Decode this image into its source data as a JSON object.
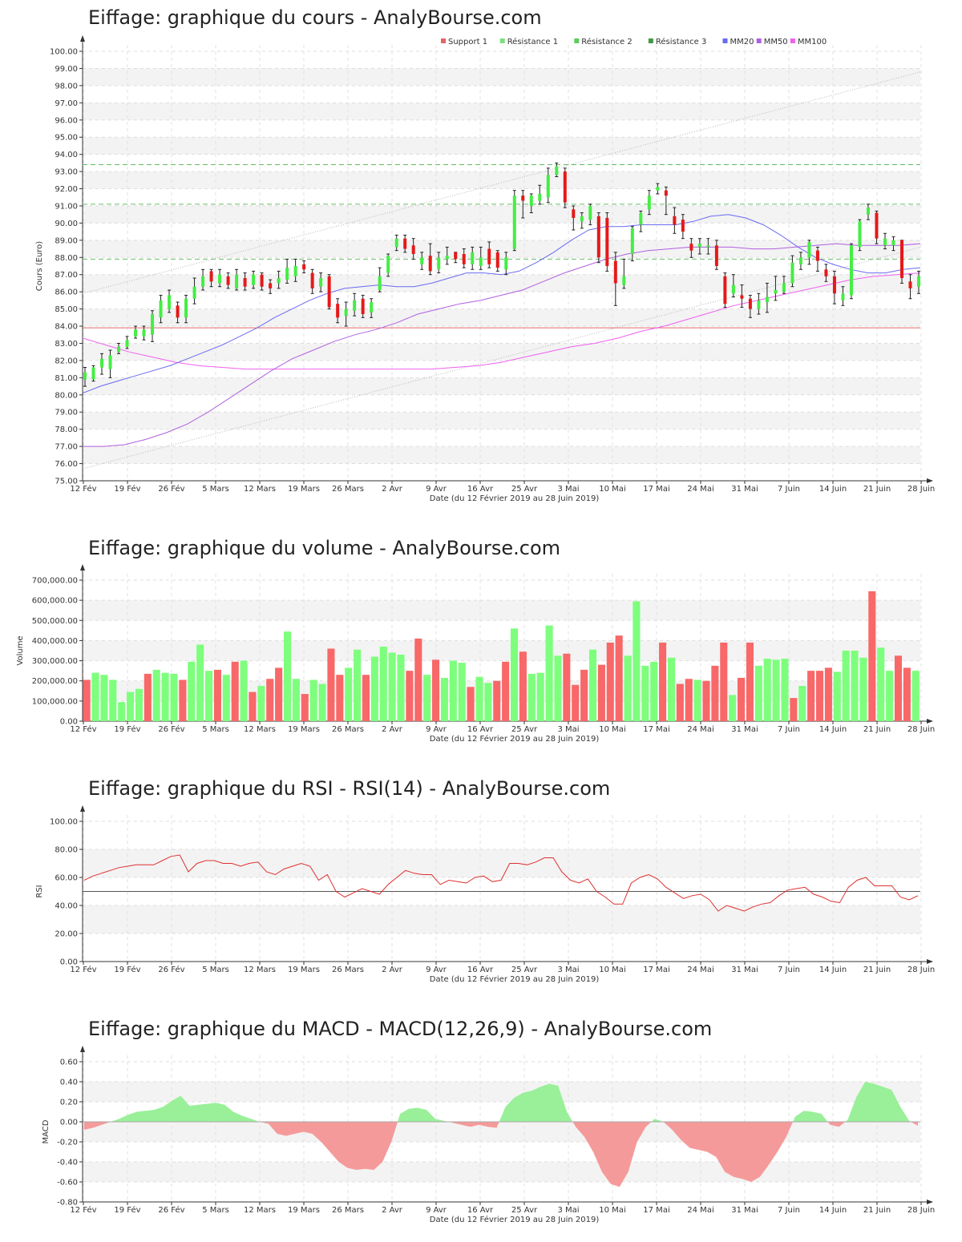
{
  "x_ticks": [
    "12 Fév",
    "19 Fév",
    "26 Fév",
    "5 Mars",
    "12 Mars",
    "19 Mars",
    "26 Mars",
    "2 Avr",
    "9 Avr",
    "16 Avr",
    "25 Avr",
    "3 Mai",
    "10 Mai",
    "17 Mai",
    "24 Mai",
    "31 Mai",
    "7 Juin",
    "14 Juin",
    "21 Juin",
    "28 Juin"
  ],
  "x_label": "Date (du 12 Février 2019 au 28 Juin 2019)",
  "colors": {
    "up": "#44ee44",
    "down": "#e61919",
    "vol_up": "#7dff7d",
    "vol_down": "#f86868",
    "mm20": "#6a6af0",
    "mm50": "#b060e0",
    "mm100": "#f060f0",
    "support": "#e06666",
    "resistance": "#66bb66",
    "rsi": "#e03030",
    "macd_pos": "#99f099",
    "macd_neg": "#f59a9a"
  },
  "chart_data": [
    {
      "type": "candlestick",
      "title": "Eiffage: graphique du cours - AnalyBourse.com",
      "ylabel": "Cours (Euro)",
      "ylim": [
        75,
        100
      ],
      "grid": true,
      "legend_position": "top-right",
      "legend": [
        "Support 1",
        "Résistance 1",
        "Résistance 2",
        "Résistance 3",
        "MM20",
        "MM50",
        "MM100"
      ],
      "y_ticks": [
        "75.00",
        "76.00",
        "77.00",
        "78.00",
        "79.00",
        "80.00",
        "81.00",
        "82.00",
        "83.00",
        "84.00",
        "85.00",
        "86.00",
        "87.00",
        "88.00",
        "89.00",
        "90.00",
        "91.00",
        "92.00",
        "93.00",
        "94.00",
        "95.00",
        "96.00",
        "97.00",
        "98.00",
        "99.00",
        "100.00"
      ],
      "support": 83.9,
      "resistances": [
        93.4,
        91.1,
        87.9
      ],
      "channel_upper": [
        85.9,
        98.8
      ],
      "channel_lower": [
        75.7,
        88.6
      ],
      "candles": [
        [
          80.9,
          81.3,
          80.5,
          81.6
        ],
        [
          80.9,
          81.6,
          80.8,
          81.7
        ],
        [
          81.6,
          82.1,
          81.2,
          82.4
        ],
        [
          81.5,
          82.3,
          81.0,
          82.6
        ],
        [
          82.5,
          82.8,
          82.4,
          83.0
        ],
        [
          82.8,
          83.2,
          82.7,
          83.4
        ],
        [
          83.4,
          83.8,
          83.3,
          84.0
        ],
        [
          83.4,
          83.8,
          83.2,
          84.0
        ],
        [
          83.5,
          84.7,
          83.1,
          84.9
        ],
        [
          84.5,
          85.5,
          84.2,
          85.8
        ],
        [
          85.0,
          85.8,
          84.8,
          86.1
        ],
        [
          85.2,
          84.5,
          84.2,
          85.4
        ],
        [
          84.5,
          85.6,
          84.2,
          85.8
        ],
        [
          85.6,
          86.3,
          85.3,
          86.8
        ],
        [
          86.3,
          86.9,
          86.1,
          87.3
        ],
        [
          87.2,
          86.6,
          86.3,
          87.3
        ],
        [
          86.5,
          87.0,
          86.3,
          87.3
        ],
        [
          86.9,
          86.4,
          86.2,
          87.1
        ],
        [
          86.2,
          87.0,
          86.1,
          87.3
        ],
        [
          86.8,
          86.3,
          86.1,
          87.1
        ],
        [
          86.4,
          87.0,
          86.2,
          87.2
        ],
        [
          87.0,
          86.3,
          86.1,
          87.1
        ],
        [
          86.5,
          86.2,
          85.9,
          86.7
        ],
        [
          86.5,
          86.8,
          86.2,
          87.2
        ],
        [
          86.7,
          87.4,
          86.5,
          87.9
        ],
        [
          86.9,
          87.5,
          86.6,
          87.9
        ],
        [
          87.6,
          87.3,
          87.1,
          87.8
        ],
        [
          87.1,
          86.2,
          85.9,
          87.3
        ],
        [
          86.3,
          86.8,
          86.0,
          87.1
        ],
        [
          86.9,
          85.1,
          85.0,
          87.0
        ],
        [
          85.3,
          84.5,
          84.2,
          85.6
        ],
        [
          84.6,
          85.0,
          84.0,
          85.4
        ],
        [
          84.9,
          85.5,
          84.6,
          85.9
        ],
        [
          85.6,
          84.7,
          84.5,
          85.8
        ],
        [
          84.8,
          85.4,
          84.5,
          85.6
        ],
        [
          86.1,
          86.9,
          86.0,
          87.4
        ],
        [
          87.1,
          88.1,
          86.9,
          88.2
        ],
        [
          88.6,
          89.1,
          88.4,
          89.3
        ],
        [
          89.1,
          88.5,
          88.3,
          89.3
        ],
        [
          88.7,
          88.2,
          87.9,
          89.1
        ],
        [
          87.6,
          88.0,
          87.3,
          88.3
        ],
        [
          88.1,
          87.2,
          87.0,
          88.8
        ],
        [
          87.3,
          88.0,
          87.1,
          88.3
        ],
        [
          87.9,
          88.1,
          87.6,
          88.6
        ],
        [
          88.3,
          87.9,
          87.7,
          88.3
        ],
        [
          88.2,
          87.6,
          87.4,
          88.5
        ],
        [
          87.6,
          88.3,
          87.3,
          88.6
        ],
        [
          87.5,
          88.0,
          87.3,
          88.6
        ],
        [
          88.5,
          87.6,
          87.4,
          88.9
        ],
        [
          88.3,
          87.4,
          87.2,
          88.4
        ],
        [
          87.3,
          88.0,
          87.0,
          88.3
        ],
        [
          88.5,
          91.6,
          88.4,
          91.9
        ],
        [
          91.6,
          91.3,
          90.3,
          91.9
        ],
        [
          91.0,
          91.6,
          90.6,
          91.7
        ],
        [
          91.3,
          91.7,
          91.1,
          92.2
        ],
        [
          91.5,
          92.8,
          91.2,
          93.2
        ],
        [
          92.8,
          93.3,
          92.7,
          93.5
        ],
        [
          93.0,
          91.2,
          90.9,
          93.2
        ],
        [
          90.8,
          90.3,
          89.6,
          91.0
        ],
        [
          90.1,
          90.4,
          89.7,
          90.6
        ],
        [
          90.2,
          91.0,
          89.9,
          91.1
        ],
        [
          90.4,
          88.0,
          87.7,
          90.6
        ],
        [
          90.3,
          87.5,
          87.2,
          90.6
        ],
        [
          87.8,
          86.5,
          85.2,
          88.3
        ],
        [
          86.4,
          86.9,
          86.2,
          87.9
        ],
        [
          88.2,
          89.7,
          87.8,
          89.8
        ],
        [
          89.9,
          90.6,
          89.5,
          90.7
        ],
        [
          90.8,
          91.6,
          90.5,
          91.9
        ],
        [
          91.9,
          92.1,
          91.7,
          92.3
        ],
        [
          91.9,
          91.6,
          90.5,
          92.1
        ],
        [
          90.4,
          89.9,
          89.4,
          90.9
        ],
        [
          90.2,
          89.5,
          89.1,
          90.5
        ],
        [
          88.8,
          88.4,
          88.0,
          89.1
        ],
        [
          88.6,
          88.8,
          88.2,
          89.1
        ],
        [
          88.6,
          88.7,
          88.2,
          89.1
        ],
        [
          88.7,
          87.5,
          87.3,
          89.0
        ],
        [
          86.9,
          85.3,
          85.1,
          87.1
        ],
        [
          85.9,
          86.4,
          85.7,
          87.0
        ],
        [
          85.8,
          85.6,
          85.1,
          86.4
        ],
        [
          85.6,
          85.0,
          84.5,
          85.8
        ],
        [
          85.0,
          85.5,
          84.7,
          85.9
        ],
        [
          85.4,
          85.7,
          84.8,
          86.5
        ],
        [
          85.9,
          86.1,
          85.5,
          86.9
        ],
        [
          86.0,
          86.5,
          85.9,
          86.9
        ],
        [
          86.5,
          87.7,
          86.3,
          88.1
        ],
        [
          87.6,
          88.0,
          87.3,
          88.3
        ],
        [
          88.0,
          88.9,
          87.6,
          89.0
        ],
        [
          88.4,
          87.8,
          87.2,
          88.6
        ],
        [
          87.3,
          86.9,
          86.6,
          87.6
        ],
        [
          86.9,
          85.9,
          85.3,
          87.2
        ],
        [
          85.5,
          85.9,
          85.2,
          86.3
        ],
        [
          85.8,
          88.7,
          85.6,
          88.8
        ],
        [
          88.6,
          90.1,
          88.4,
          90.2
        ],
        [
          90.5,
          90.9,
          90.2,
          91.1
        ],
        [
          90.6,
          89.1,
          88.8,
          90.7
        ],
        [
          88.7,
          89.1,
          88.5,
          89.4
        ],
        [
          88.7,
          89.0,
          88.4,
          89.2
        ],
        [
          89.0,
          86.8,
          86.5,
          89.0
        ],
        [
          86.6,
          86.2,
          85.6,
          87.0
        ],
        [
          86.3,
          86.9,
          85.9,
          87.2
        ]
      ],
      "mm20": [
        80.1,
        80.5,
        80.8,
        81.1,
        81.4,
        81.7,
        82.1,
        82.5,
        82.9,
        83.4,
        83.9,
        84.5,
        85.0,
        85.5,
        85.9,
        86.2,
        86.3,
        86.4,
        86.3,
        86.3,
        86.5,
        86.8,
        87.1,
        87.1,
        87.0,
        87.2,
        87.7,
        88.3,
        89.0,
        89.6,
        89.8,
        89.8,
        89.9,
        89.9,
        89.9,
        90.1,
        90.4,
        90.5,
        90.3,
        89.9,
        89.3,
        88.6,
        88.0,
        87.6,
        87.3,
        87.1,
        87.1,
        87.3,
        87.4
      ],
      "mm50": [
        77.0,
        77.0,
        77.1,
        77.4,
        77.8,
        78.3,
        79.0,
        79.8,
        80.6,
        81.4,
        82.1,
        82.6,
        83.1,
        83.5,
        83.8,
        84.2,
        84.7,
        85.0,
        85.3,
        85.5,
        85.8,
        86.1,
        86.6,
        87.1,
        87.5,
        87.9,
        88.2,
        88.4,
        88.5,
        88.6,
        88.6,
        88.6,
        88.5,
        88.5,
        88.6,
        88.7,
        88.8,
        88.7,
        88.7,
        88.7,
        88.8
      ],
      "mm100": [
        83.3,
        82.9,
        82.5,
        82.2,
        81.9,
        81.7,
        81.6,
        81.5,
        81.5,
        81.5,
        81.5,
        81.5,
        81.5,
        81.5,
        81.5,
        81.5,
        81.6,
        81.7,
        81.9,
        82.2,
        82.5,
        82.8,
        83.0,
        83.3,
        83.7,
        84.0,
        84.4,
        84.8,
        85.2,
        85.5,
        85.8,
        86.1,
        86.4,
        86.7,
        86.9,
        87.0,
        87.1
      ]
    },
    {
      "type": "bar",
      "title": "Eiffage: graphique du volume - AnalyBourse.com",
      "ylabel": "Volume",
      "ylim": [
        0,
        700000
      ],
      "grid": true,
      "y_ticks": [
        "0.00",
        "100,000.00",
        "200,000.00",
        "300,000.00",
        "400,000.00",
        "500,000.00",
        "600,000.00",
        "700,000.00"
      ],
      "values": [
        205000,
        240000,
        230000,
        205000,
        95000,
        145000,
        160000,
        235000,
        255000,
        240000,
        235000,
        205000,
        295000,
        380000,
        250000,
        255000,
        230000,
        295000,
        300000,
        145000,
        175000,
        210000,
        265000,
        445000,
        210000,
        135000,
        205000,
        185000,
        360000,
        230000,
        265000,
        355000,
        230000,
        320000,
        370000,
        340000,
        330000,
        250000,
        410000,
        230000,
        305000,
        215000,
        300000,
        290000,
        170000,
        220000,
        190000,
        200000,
        295000,
        460000,
        345000,
        235000,
        240000,
        475000,
        325000,
        335000,
        180000,
        255000,
        355000,
        280000,
        390000,
        425000,
        325000,
        595000,
        275000,
        295000,
        390000,
        315000,
        185000,
        210000,
        205000,
        200000,
        275000,
        390000,
        130000,
        215000,
        390000,
        275000,
        310000,
        305000,
        310000,
        115000,
        175000,
        250000,
        250000,
        265000,
        245000,
        350000,
        350000,
        315000,
        645000,
        365000,
        250000,
        325000,
        265000,
        250000
      ],
      "up": [
        0,
        1,
        1,
        1,
        1,
        1,
        1,
        0,
        1,
        1,
        1,
        0,
        1,
        1,
        1,
        0,
        1,
        0,
        1,
        0,
        1,
        0,
        0,
        1,
        1,
        0,
        1,
        1,
        0,
        0,
        1,
        1,
        0,
        1,
        1,
        1,
        1,
        0,
        0,
        1,
        0,
        1,
        1,
        1,
        0,
        1,
        1,
        0,
        0,
        1,
        0,
        1,
        1,
        1,
        1,
        0,
        0,
        0,
        1,
        0,
        0,
        0,
        1,
        1,
        1,
        1,
        0,
        1,
        0,
        0,
        1,
        0,
        0,
        0,
        1,
        0,
        0,
        1,
        1,
        1,
        1,
        0,
        1,
        0,
        0,
        0,
        1,
        1,
        1,
        1,
        0,
        1,
        1,
        0,
        0,
        1
      ]
    },
    {
      "type": "line",
      "title": "Eiffage: graphique du RSI - RSI(14) - AnalyBourse.com",
      "ylabel": "RSI",
      "ylim": [
        0,
        100
      ],
      "grid": true,
      "y_ticks": [
        "0.00",
        "20.00",
        "40.00",
        "60.00",
        "80.00",
        "100.00"
      ],
      "reference": 50,
      "values": [
        58,
        61,
        63,
        65,
        67,
        68,
        69,
        69,
        69,
        72,
        75,
        76,
        64,
        70,
        72,
        72,
        70,
        70,
        68,
        70,
        71,
        64,
        62,
        66,
        68,
        70,
        68,
        58,
        62,
        50,
        46,
        49,
        52,
        50,
        48,
        55,
        60,
        65,
        63,
        62,
        62,
        55,
        58,
        57,
        56,
        60,
        61,
        57,
        58,
        70,
        70,
        69,
        71,
        74,
        74,
        64,
        58,
        56,
        59,
        50,
        46,
        41,
        41,
        56,
        60,
        62,
        59,
        53,
        49,
        45,
        47,
        48,
        44,
        36,
        40,
        38,
        36,
        39,
        41,
        42,
        47,
        51,
        52,
        53,
        48,
        46,
        43,
        42,
        53,
        58,
        60,
        54,
        54,
        54,
        46,
        44,
        47
      ]
    },
    {
      "type": "area",
      "title": "Eiffage: graphique du MACD - MACD(12,26,9) - AnalyBourse.com",
      "ylabel": "MACD",
      "ylim": [
        -0.8,
        0.6
      ],
      "grid": true,
      "y_ticks": [
        "-0.80",
        "-0.60",
        "-0.40",
        "-0.20",
        "0.00",
        "0.20",
        "0.40",
        "0.60"
      ],
      "values": [
        -0.08,
        -0.06,
        -0.03,
        0.0,
        0.03,
        0.07,
        0.1,
        0.11,
        0.12,
        0.15,
        0.21,
        0.26,
        0.16,
        0.17,
        0.18,
        0.19,
        0.17,
        0.1,
        0.06,
        0.03,
        0.0,
        -0.02,
        -0.12,
        -0.14,
        -0.12,
        -0.1,
        -0.12,
        -0.2,
        -0.3,
        -0.4,
        -0.46,
        -0.48,
        -0.47,
        -0.48,
        -0.4,
        -0.2,
        0.08,
        0.13,
        0.14,
        0.12,
        0.03,
        0.01,
        -0.01,
        -0.03,
        -0.05,
        -0.03,
        -0.05,
        -0.06,
        0.15,
        0.24,
        0.29,
        0.31,
        0.35,
        0.38,
        0.36,
        0.1,
        -0.05,
        -0.15,
        -0.3,
        -0.5,
        -0.62,
        -0.65,
        -0.5,
        -0.2,
        -0.05,
        0.03,
        0.0,
        -0.08,
        -0.18,
        -0.26,
        -0.28,
        -0.3,
        -0.35,
        -0.5,
        -0.55,
        -0.57,
        -0.6,
        -0.55,
        -0.43,
        -0.3,
        -0.15,
        0.05,
        0.11,
        0.1,
        0.08,
        -0.03,
        -0.05,
        0.02,
        0.25,
        0.4,
        0.38,
        0.35,
        0.32,
        0.15,
        0.01,
        -0.04
      ]
    }
  ]
}
